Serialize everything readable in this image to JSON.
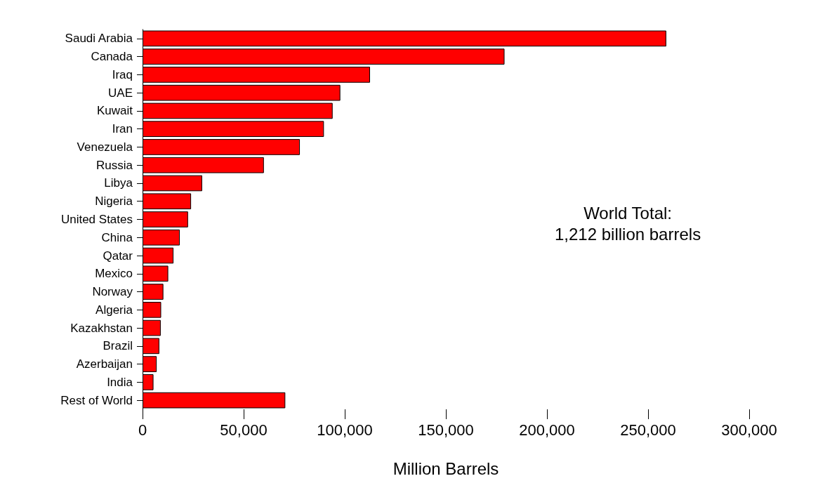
{
  "chart_data": {
    "type": "bar",
    "orientation": "horizontal",
    "xlabel": "Million Barrels",
    "categories": [
      "Saudi Arabia",
      "Canada",
      "Iraq",
      "UAE",
      "Kuwait",
      "Iran",
      "Venezuela",
      "Russia",
      "Libya",
      "Nigeria",
      "United States",
      "China",
      "Qatar",
      "Mexico",
      "Norway",
      "Algeria",
      "Kazakhstan",
      "Brazil",
      "Azerbaijan",
      "India",
      "Rest of World"
    ],
    "values": [
      259000,
      179000,
      112500,
      97800,
      94000,
      89700,
      77800,
      60000,
      29500,
      24000,
      22500,
      18400,
      15300,
      12700,
      10300,
      9200,
      9000,
      8300,
      7000,
      5400,
      70600
    ],
    "color": "#ff0000",
    "xlim": [
      0,
      300000
    ],
    "xticks": [
      0,
      {
        "value": 50000,
        "label": "50,000"
      },
      {
        "value": 100000,
        "label": "100,000"
      },
      {
        "value": 150000,
        "label": "150,000"
      },
      {
        "value": 200000,
        "label": "200,000"
      },
      {
        "value": 250000,
        "label": "250,000"
      },
      {
        "value": 300000,
        "label": "300,000"
      }
    ],
    "annotations": [
      "World Total:\n1,212 billion barrels"
    ]
  }
}
